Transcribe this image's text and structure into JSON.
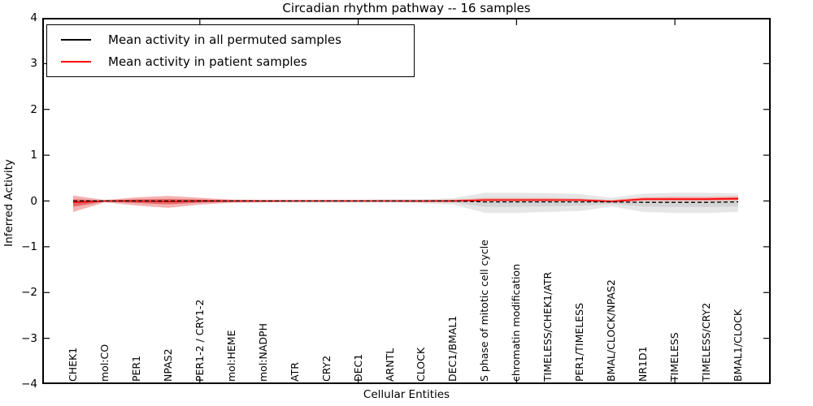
{
  "title": "Circadian rhythm pathway -- 16 samples",
  "axes": {
    "ylabel": "Inferred Activity",
    "xlabel": "Cellular Entities",
    "yticks": [
      "4",
      "3",
      "2",
      "1",
      "0",
      "−1",
      "−2",
      "−3",
      "−4"
    ],
    "ylim": [
      -4,
      4
    ]
  },
  "legend": {
    "items": [
      {
        "label": "Mean activity in all permuted samples",
        "color": "#000000"
      },
      {
        "label": "Mean activity in patient samples",
        "color": "#ff0000"
      }
    ],
    "position": "upper left"
  },
  "chart_data": {
    "type": "line",
    "title": "Circadian rhythm pathway -- 16 samples",
    "xlabel": "Cellular Entities",
    "ylabel": "Inferred Activity",
    "ylim": [
      -4,
      4
    ],
    "grid": false,
    "legend_position": "upper left",
    "xtick_major_indices": [
      4,
      9,
      14,
      19
    ],
    "categories": [
      "CHEK1",
      "mol:CO",
      "PER1",
      "NPAS2",
      "PER1-2 / CRY1-2",
      "mol:HEME",
      "mol:NADPH",
      "ATR",
      "CRY2",
      "DEC1",
      "ARNTL",
      "CLOCK",
      "DEC1/BMAL1",
      "S phase of mitotic cell cycle",
      "chromatin modification",
      "TIMELESS/CHEK1/ATR",
      "PER1/TIMELESS",
      "BMAL/CLOCK/NPAS2",
      "NR1D1",
      "TIMELESS",
      "TIMELESS/CRY2",
      "BMAL1/CLOCK"
    ],
    "series": [
      {
        "name": "Mean activity in all permuted samples",
        "color": "#000000",
        "line_style": "dashed",
        "values": [
          0,
          0,
          0,
          0,
          0,
          0,
          0,
          0,
          0,
          0,
          0,
          0,
          0,
          -0.02,
          -0.02,
          -0.02,
          -0.02,
          -0.02,
          -0.03,
          -0.03,
          -0.03,
          -0.02
        ]
      },
      {
        "name": "Mean activity in patient samples",
        "color": "#ff0000",
        "line_style": "solid",
        "values": [
          -0.03,
          0,
          0,
          -0.01,
          0,
          0,
          0,
          0,
          0,
          0,
          0,
          0,
          0,
          0.02,
          0.02,
          0.02,
          0.02,
          -0.01,
          0.04,
          0.04,
          0.04,
          0.05
        ]
      }
    ],
    "bands": [
      {
        "name": "permuted-samples-spread",
        "color": "#e2e2e2",
        "inner_color": "#d0d0d0",
        "upper": [
          0.1,
          0.03,
          0.04,
          0.05,
          0.04,
          0.03,
          0.03,
          0.03,
          0.03,
          0.03,
          0.04,
          0.04,
          0.06,
          0.18,
          0.18,
          0.17,
          0.15,
          0.07,
          0.16,
          0.18,
          0.18,
          0.16
        ],
        "lower": [
          -0.14,
          -0.03,
          -0.04,
          -0.05,
          -0.04,
          -0.03,
          -0.03,
          -0.04,
          -0.04,
          -0.04,
          -0.04,
          -0.05,
          -0.08,
          -0.26,
          -0.26,
          -0.24,
          -0.22,
          -0.12,
          -0.24,
          -0.26,
          -0.26,
          -0.24
        ]
      },
      {
        "name": "patient-samples-spread",
        "color": "#f2a6a6",
        "inner_color": "#e05555",
        "upper": [
          0.12,
          0.02,
          0.08,
          0.11,
          0.07,
          0.03,
          0.02,
          0.02,
          0.02,
          0.02,
          0.02,
          0.02,
          0.03,
          0.06,
          0.06,
          0.06,
          0.05,
          0.02,
          0.08,
          0.09,
          0.09,
          0.1
        ],
        "lower": [
          -0.24,
          -0.03,
          -0.1,
          -0.15,
          -0.08,
          -0.04,
          -0.03,
          -0.02,
          -0.02,
          -0.02,
          -0.02,
          -0.03,
          -0.03,
          -0.01,
          -0.01,
          -0.01,
          -0.01,
          -0.04,
          0.0,
          0.0,
          0.0,
          0.01
        ]
      }
    ]
  }
}
